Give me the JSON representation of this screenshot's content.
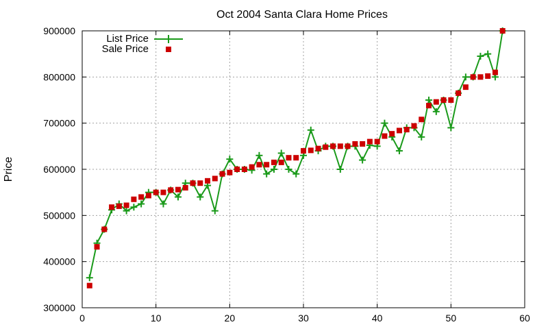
{
  "chart_data": {
    "type": "line",
    "title": "Oct 2004 Santa Clara Home Prices",
    "xlabel": "",
    "ylabel": "Price",
    "xlim": [
      0,
      60
    ],
    "ylim": [
      300000,
      900000
    ],
    "xticks": [
      0,
      10,
      20,
      30,
      40,
      50,
      60
    ],
    "yticks": [
      300000,
      400000,
      500000,
      600000,
      700000,
      800000,
      900000
    ],
    "grid": true,
    "legend_position": "top-left",
    "series": [
      {
        "name": "List Price",
        "style": "line-with-plus-markers",
        "color": "#1a9a1a",
        "x": [
          1,
          2,
          3,
          4,
          5,
          6,
          7,
          8,
          9,
          10,
          11,
          12,
          13,
          14,
          15,
          16,
          17,
          18,
          19,
          20,
          21,
          22,
          23,
          24,
          25,
          26,
          27,
          28,
          29,
          30,
          31,
          32,
          33,
          34,
          35,
          36,
          37,
          38,
          39,
          40,
          41,
          42,
          43,
          44,
          45,
          46,
          47,
          48,
          49,
          50,
          51,
          52,
          53,
          54,
          55,
          56,
          57
        ],
        "values": [
          365000,
          440000,
          470000,
          512000,
          525000,
          510000,
          518000,
          525000,
          550000,
          550000,
          525000,
          555000,
          540000,
          570000,
          570000,
          540000,
          565000,
          510000,
          590000,
          622000,
          600000,
          600000,
          598000,
          630000,
          590000,
          600000,
          635000,
          600000,
          590000,
          630000,
          685000,
          640000,
          650000,
          650000,
          600000,
          650000,
          650000,
          620000,
          652000,
          650000,
          700000,
          670000,
          640000,
          690000,
          690000,
          670000,
          750000,
          725000,
          750000,
          690000,
          765000,
          800000,
          800000,
          845000,
          850000,
          800000,
          900000
        ]
      },
      {
        "name": "Sale Price",
        "style": "square-markers",
        "color": "#cc0000",
        "x": [
          1,
          2,
          3,
          4,
          5,
          6,
          7,
          8,
          9,
          10,
          11,
          12,
          13,
          14,
          15,
          16,
          17,
          18,
          19,
          20,
          21,
          22,
          23,
          24,
          25,
          26,
          27,
          28,
          29,
          30,
          31,
          32,
          33,
          34,
          35,
          36,
          37,
          38,
          39,
          40,
          41,
          42,
          43,
          44,
          45,
          46,
          47,
          48,
          49,
          50,
          51,
          52,
          53,
          54,
          55,
          56,
          57
        ],
        "values": [
          348000,
          432000,
          470000,
          518000,
          520000,
          522000,
          535000,
          540000,
          543000,
          550000,
          550000,
          555000,
          556000,
          560000,
          570000,
          570000,
          575000,
          580000,
          590000,
          593000,
          600000,
          600000,
          605000,
          610000,
          610000,
          615000,
          615000,
          625000,
          625000,
          640000,
          641000,
          645000,
          648000,
          650000,
          650000,
          650000,
          655000,
          655000,
          660000,
          660000,
          672000,
          677000,
          684000,
          686000,
          694000,
          708000,
          738000,
          746000,
          750000,
          750000,
          765000,
          778000,
          800000,
          800000,
          802000,
          810000,
          900000
        ]
      }
    ]
  }
}
